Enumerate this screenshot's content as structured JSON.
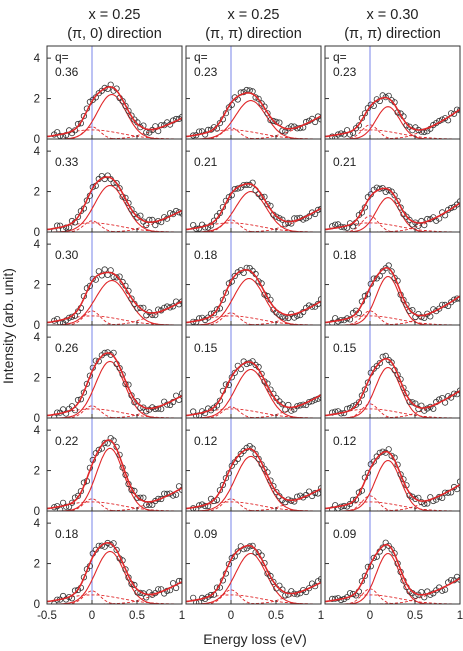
{
  "figure": {
    "ylabel": "Intensity (arb. unit)",
    "xlabel": "Energy loss (eV)",
    "q_prefix": "q=",
    "colors": {
      "frame": "#333333",
      "fit": "#e0282a",
      "component": "#e0282a",
      "zero_line": "#6a78e8",
      "marker": "#333333"
    }
  },
  "columns": [
    {
      "title_line1": "x = 0.25",
      "title_line2": "(π, 0) direction",
      "q_values": [
        "0.36",
        "0.33",
        "0.30",
        "0.26",
        "0.22",
        "0.18"
      ]
    },
    {
      "title_line1": "x = 0.25",
      "title_line2": "(π, π) direction",
      "q_values": [
        "0.23",
        "0.21",
        "0.18",
        "0.15",
        "0.12",
        "0.09"
      ]
    },
    {
      "title_line1": "x = 0.30",
      "title_line2": "(π, π) direction",
      "q_values": [
        "0.23",
        "0.21",
        "0.18",
        "0.15",
        "0.12",
        "0.09"
      ]
    }
  ],
  "chart_data": {
    "type": "scatter",
    "layout": "grid 6 rows x 3 columns",
    "xlim": [
      -0.5,
      1.0
    ],
    "ylim": [
      0,
      4.6
    ],
    "x_ticks": [
      "-0.5",
      "0",
      "0.5",
      "1"
    ],
    "y_ticks": [
      "0",
      "2",
      "4"
    ],
    "zero_line_x": 0,
    "panels": [
      {
        "col": 0,
        "row": 0,
        "q": "0.36",
        "fit": {
          "peak_center": 0.22,
          "peak_width": 0.16,
          "peak_height": 2.2,
          "elastic_height": 0.6,
          "background_slope": 2.2,
          "onset": 0.55
        }
      },
      {
        "col": 0,
        "row": 1,
        "q": "0.33",
        "fit": {
          "peak_center": 0.2,
          "peak_width": 0.17,
          "peak_height": 2.3,
          "elastic_height": 0.55,
          "background_slope": 2.3,
          "onset": 0.55
        }
      },
      {
        "col": 0,
        "row": 2,
        "q": "0.30",
        "fit": {
          "peak_center": 0.22,
          "peak_width": 0.18,
          "peak_height": 2.2,
          "elastic_height": 0.7,
          "background_slope": 2.4,
          "onset": 0.52
        }
      },
      {
        "col": 0,
        "row": 3,
        "q": "0.26",
        "fit": {
          "peak_center": 0.2,
          "peak_width": 0.16,
          "peak_height": 2.8,
          "elastic_height": 0.6,
          "background_slope": 2.4,
          "onset": 0.55
        }
      },
      {
        "col": 0,
        "row": 4,
        "q": "0.22",
        "fit": {
          "peak_center": 0.2,
          "peak_width": 0.15,
          "peak_height": 3.1,
          "elastic_height": 0.6,
          "background_slope": 2.5,
          "onset": 0.55
        }
      },
      {
        "col": 0,
        "row": 5,
        "q": "0.18",
        "fit": {
          "peak_center": 0.2,
          "peak_width": 0.16,
          "peak_height": 2.6,
          "elastic_height": 0.65,
          "background_slope": 2.4,
          "onset": 0.55
        }
      },
      {
        "col": 1,
        "row": 0,
        "q": "0.23",
        "fit": {
          "peak_center": 0.22,
          "peak_width": 0.17,
          "peak_height": 1.9,
          "elastic_height": 0.55,
          "background_slope": 2.5,
          "onset": 0.55
        }
      },
      {
        "col": 1,
        "row": 1,
        "q": "0.21",
        "fit": {
          "peak_center": 0.22,
          "peak_width": 0.17,
          "peak_height": 2.0,
          "elastic_height": 0.6,
          "background_slope": 2.6,
          "onset": 0.55
        }
      },
      {
        "col": 1,
        "row": 2,
        "q": "0.18",
        "fit": {
          "peak_center": 0.2,
          "peak_width": 0.17,
          "peak_height": 2.3,
          "elastic_height": 0.6,
          "background_slope": 2.6,
          "onset": 0.55
        }
      },
      {
        "col": 1,
        "row": 3,
        "q": "0.15",
        "fit": {
          "peak_center": 0.22,
          "peak_width": 0.17,
          "peak_height": 2.4,
          "elastic_height": 0.55,
          "background_slope": 2.5,
          "onset": 0.55
        }
      },
      {
        "col": 1,
        "row": 4,
        "q": "0.12",
        "fit": {
          "peak_center": 0.22,
          "peak_width": 0.17,
          "peak_height": 2.7,
          "elastic_height": 0.6,
          "background_slope": 2.4,
          "onset": 0.55
        }
      },
      {
        "col": 1,
        "row": 5,
        "q": "0.09",
        "fit": {
          "peak_center": 0.22,
          "peak_width": 0.17,
          "peak_height": 2.5,
          "elastic_height": 0.7,
          "background_slope": 2.3,
          "onset": 0.55
        }
      },
      {
        "col": 2,
        "row": 0,
        "q": "0.23",
        "fit": {
          "peak_center": 0.2,
          "peak_width": 0.13,
          "peak_height": 1.6,
          "elastic_height": 0.7,
          "background_slope": 3.0,
          "onset": 0.5
        }
      },
      {
        "col": 2,
        "row": 1,
        "q": "0.21",
        "fit": {
          "peak_center": 0.2,
          "peak_width": 0.13,
          "peak_height": 1.7,
          "elastic_height": 0.8,
          "background_slope": 2.9,
          "onset": 0.5
        }
      },
      {
        "col": 2,
        "row": 2,
        "q": "0.18",
        "fit": {
          "peak_center": 0.2,
          "peak_width": 0.13,
          "peak_height": 2.4,
          "elastic_height": 0.7,
          "background_slope": 2.9,
          "onset": 0.5
        }
      },
      {
        "col": 2,
        "row": 3,
        "q": "0.15",
        "fit": {
          "peak_center": 0.2,
          "peak_width": 0.14,
          "peak_height": 2.5,
          "elastic_height": 0.7,
          "background_slope": 2.7,
          "onset": 0.5
        }
      },
      {
        "col": 2,
        "row": 4,
        "q": "0.12",
        "fit": {
          "peak_center": 0.2,
          "peak_width": 0.14,
          "peak_height": 2.5,
          "elastic_height": 0.75,
          "background_slope": 2.6,
          "onset": 0.5
        }
      },
      {
        "col": 2,
        "row": 5,
        "q": "0.09",
        "fit": {
          "peak_center": 0.2,
          "peak_width": 0.13,
          "peak_height": 2.5,
          "elastic_height": 0.75,
          "background_slope": 2.5,
          "onset": 0.5
        }
      }
    ]
  }
}
